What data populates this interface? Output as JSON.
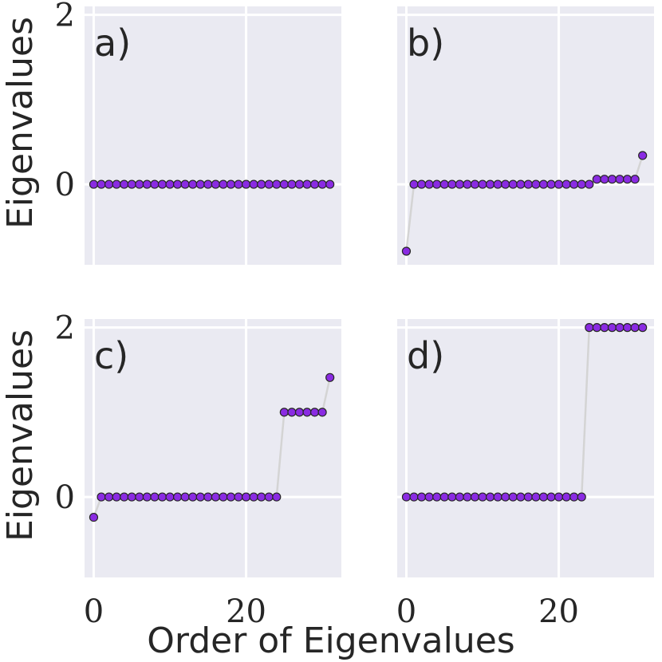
{
  "chart_data": [
    {
      "type": "line",
      "panel_label": "a)",
      "xlabel": "",
      "ylabel": "Eigenvalues",
      "xticks": [],
      "yticks": [
        "2",
        "0"
      ],
      "xlim": [
        -1.2,
        32.5
      ],
      "ylim": [
        -0.95,
        2.1
      ],
      "values": [
        0,
        0,
        0,
        0,
        0,
        0,
        0,
        0,
        0,
        0,
        0,
        0,
        0,
        0,
        0,
        0,
        0,
        0,
        0,
        0,
        0,
        0,
        0,
        0,
        0,
        0,
        0,
        0,
        0,
        0,
        0,
        0
      ]
    },
    {
      "type": "line",
      "panel_label": "b)",
      "xlabel": "",
      "ylabel": "",
      "xticks": [],
      "yticks": [],
      "xlim": [
        -1.2,
        32.5
      ],
      "ylim": [
        -0.95,
        2.1
      ],
      "values": [
        -0.79,
        0,
        0,
        0,
        0,
        0,
        0,
        0,
        0,
        0,
        0,
        0,
        0,
        0,
        0,
        0,
        0,
        0,
        0,
        0,
        0,
        0,
        0,
        0,
        0,
        0.06,
        0.06,
        0.06,
        0.06,
        0.06,
        0.06,
        0.34
      ]
    },
    {
      "type": "line",
      "panel_label": "c)",
      "xlabel": "",
      "ylabel": "Eigenvalues",
      "xticks": [
        "0",
        "20"
      ],
      "yticks": [
        "2",
        "0"
      ],
      "xlim": [
        -1.2,
        32.5
      ],
      "ylim": [
        -0.95,
        2.1
      ],
      "values": [
        -0.24,
        0,
        0,
        0,
        0,
        0,
        0,
        0,
        0,
        0,
        0,
        0,
        0,
        0,
        0,
        0,
        0,
        0,
        0,
        0,
        0,
        0,
        0,
        0,
        0,
        1,
        1,
        1,
        1,
        1,
        1,
        1.41
      ]
    },
    {
      "type": "line",
      "panel_label": "d)",
      "xlabel": "",
      "ylabel": "",
      "xticks": [
        "0",
        "20"
      ],
      "yticks": [],
      "xlim": [
        -1.2,
        32.5
      ],
      "ylim": [
        -0.95,
        2.1
      ],
      "values": [
        0,
        0,
        0,
        0,
        0,
        0,
        0,
        0,
        0,
        0,
        0,
        0,
        0,
        0,
        0,
        0,
        0,
        0,
        0,
        0,
        0,
        0,
        0,
        0,
        2,
        2,
        2,
        2,
        2,
        2,
        2,
        2
      ]
    }
  ],
  "figure": {
    "xlabel": "Order of Eigenvalues"
  },
  "colors": {
    "marker": "#8a2be2",
    "line": "#d4d4d4",
    "panel_bg": "#eaeaf2"
  }
}
